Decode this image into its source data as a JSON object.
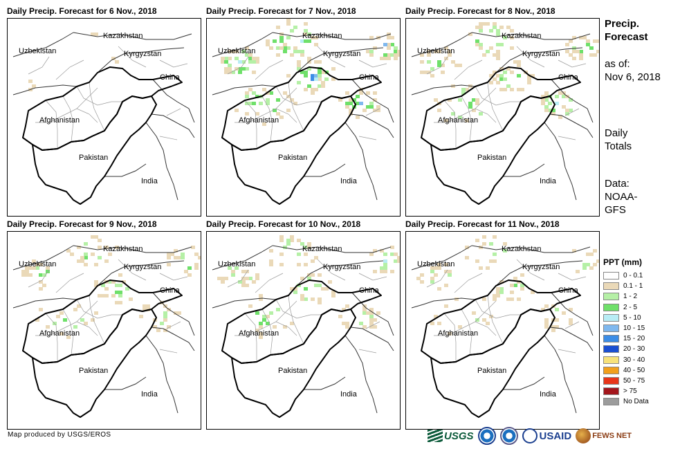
{
  "panels": [
    {
      "title": "Daily Precip. Forecast for 6 Nov., 2018",
      "intensity": 0.0
    },
    {
      "title": "Daily Precip. Forecast for 7 Nov., 2018",
      "intensity": 1.0
    },
    {
      "title": "Daily Precip. Forecast for 8 Nov., 2018",
      "intensity": 0.75
    },
    {
      "title": "Daily Precip. Forecast for 9 Nov., 2018",
      "intensity": 0.6
    },
    {
      "title": "Daily Precip. Forecast for 10 Nov., 2018",
      "intensity": 0.6
    },
    {
      "title": "Daily Precip. Forecast for 11 Nov., 2018",
      "intensity": 0.45
    }
  ],
  "map_labels": {
    "kazakhstan": "Kazakhstan",
    "uzbekistan": "Uzbekistan",
    "kyrgyzstan": "Kyrgyzstan",
    "china": "China",
    "afghanistan": "Afghanistan",
    "pakistan": "Pakistan",
    "india": "India"
  },
  "side": {
    "heading_line1": "Precip.",
    "heading_line2": "Forecast",
    "asof_line1": "as of:",
    "asof_line2": "Nov 6, 2018",
    "totals_line1": "Daily",
    "totals_line2": "Totals",
    "data_line1": "Data:",
    "data_line2": "NOAA-",
    "data_line3": "GFS"
  },
  "legend": {
    "title": "PPT (mm)",
    "items": [
      {
        "label": "0 - 0.1",
        "color": "#ffffff"
      },
      {
        "label": "0.1 - 1",
        "color": "#ead9b8"
      },
      {
        "label": "1 - 2",
        "color": "#b5f0a6"
      },
      {
        "label": "2 - 5",
        "color": "#6fe06a"
      },
      {
        "label": "5 - 10",
        "color": "#b8ecf5"
      },
      {
        "label": "10 - 15",
        "color": "#7fb8ee"
      },
      {
        "label": "15 - 20",
        "color": "#3c8de6"
      },
      {
        "label": "20 - 30",
        "color": "#1a4fd1"
      },
      {
        "label": "30 - 40",
        "color": "#f7e27a"
      },
      {
        "label": "40 - 50",
        "color": "#f2a01c"
      },
      {
        "label": "50 - 75",
        "color": "#e8361a"
      },
      {
        "label": "> 75",
        "color": "#a3151b"
      },
      {
        "label": "No Data",
        "color": "#9c9c9c"
      }
    ]
  },
  "credit": "Map produced by USGS/EROS",
  "logos": {
    "usgs": "USGS",
    "usaid": "USAID",
    "fews": "FEWS NET"
  }
}
